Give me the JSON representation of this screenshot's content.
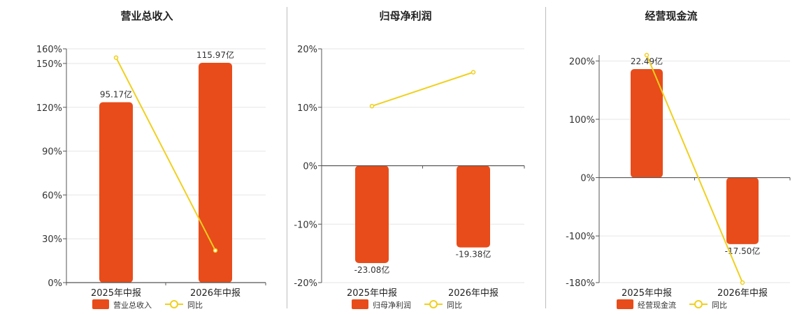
{
  "chart_data": [
    {
      "type": "bar",
      "title": "营业总收入",
      "categories": [
        "2025年中报",
        "2026年中报"
      ],
      "bar_series": {
        "name": "营业总收入",
        "labels": [
          "95.17亿",
          "115.97亿"
        ],
        "values": [
          95.17,
          115.97
        ]
      },
      "line_series": {
        "name": "同比",
        "values": [
          154,
          22
        ]
      },
      "y_ticks": [
        "0%",
        "30%",
        "60%",
        "90%",
        "120%",
        "150%",
        "160%"
      ],
      "ylim": [
        0,
        160
      ],
      "grid": true,
      "legend_position": "bottom"
    },
    {
      "type": "bar",
      "title": "归母净利润",
      "categories": [
        "2025年中报",
        "2026年中报"
      ],
      "bar_series": {
        "name": "归母净利润",
        "labels": [
          "-23.08亿",
          "-19.38亿"
        ],
        "values": [
          -23.08,
          -19.38
        ]
      },
      "line_series": {
        "name": "同比",
        "values": [
          10.2,
          16
        ]
      },
      "y_ticks": [
        "-20%",
        "-10%",
        "0%",
        "10%",
        "20%"
      ],
      "ylim": [
        -20,
        20
      ],
      "grid": true,
      "legend_position": "bottom"
    },
    {
      "type": "bar",
      "title": "经营现金流",
      "categories": [
        "2025年中报",
        "2026年中报"
      ],
      "bar_series": {
        "name": "经营现金流",
        "labels": [
          "22.49亿",
          "-17.50亿"
        ],
        "values": [
          22.49,
          -17.5
        ]
      },
      "line_series": {
        "name": "同比",
        "values": [
          210,
          -180
        ]
      },
      "y_ticks": [
        "-180%",
        "-100%",
        "0%",
        "100%",
        "200%"
      ],
      "ylim": [
        -180,
        210
      ],
      "grid": true,
      "legend_position": "bottom"
    }
  ],
  "colors": {
    "bar": "#e84c1a",
    "line": "#f0d01e",
    "axis": "#555555",
    "grid": "#e6e6e6"
  }
}
